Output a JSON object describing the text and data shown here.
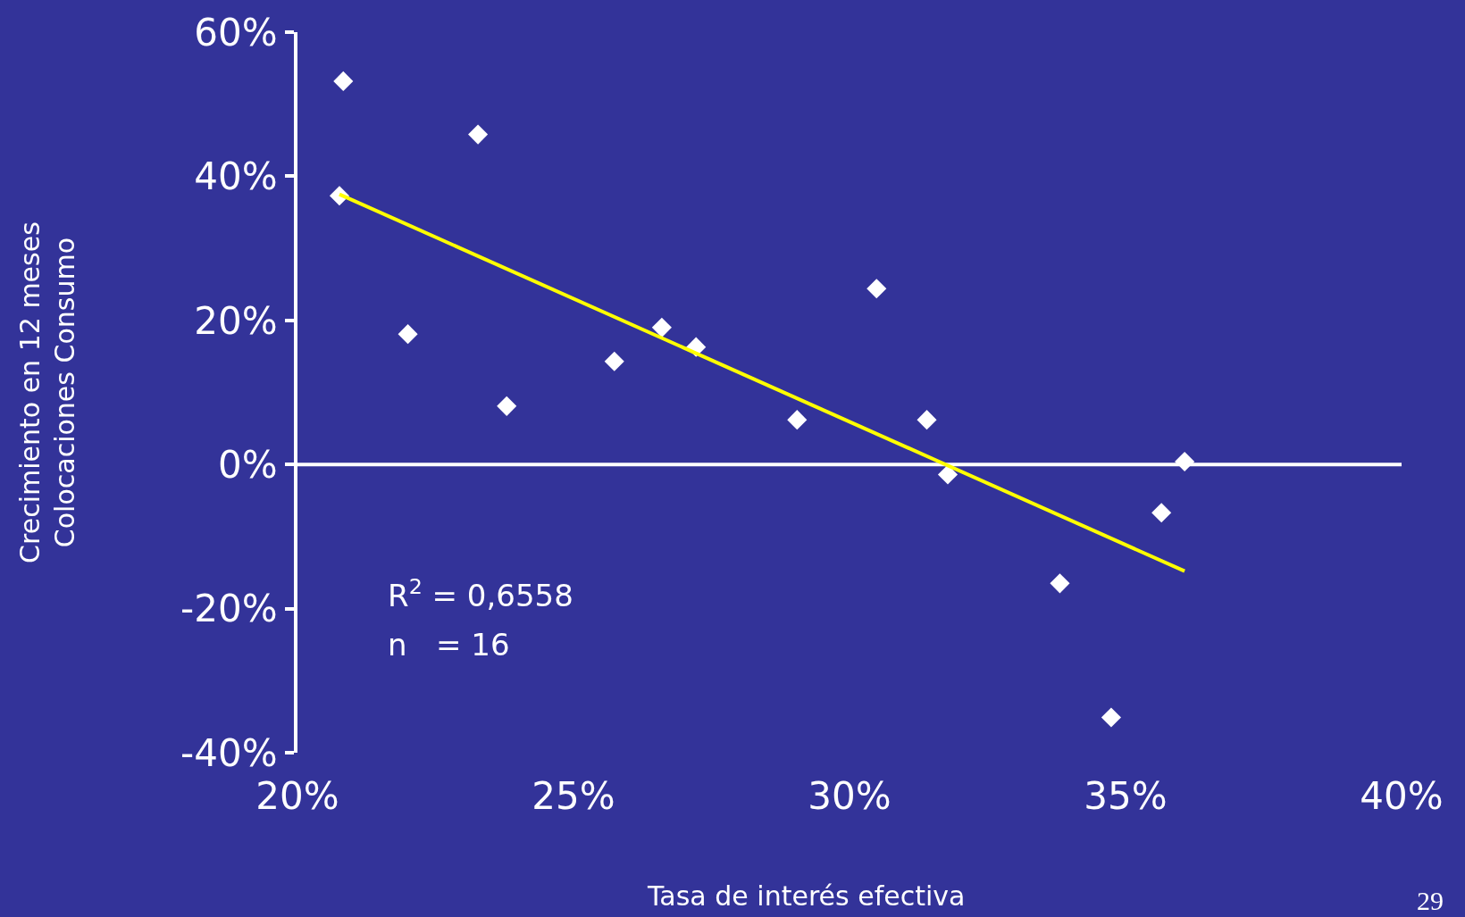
{
  "chart_data": {
    "type": "scatter",
    "xlabel": "Tasa de interés efectiva",
    "ylabel": "Crecimiento en 12 meses\nColocaciones Consumo",
    "series": [
      {
        "color": "#ffffff",
        "marker": "diamond",
        "x": [
          20.83,
          20.76,
          22.0,
          23.27,
          23.79,
          25.74,
          26.6,
          27.22,
          29.05,
          30.49,
          31.4,
          31.78,
          33.81,
          34.74,
          35.65,
          36.07
        ],
        "values": [
          53.2,
          37.3,
          18.1,
          45.8,
          8.1,
          14.3,
          19.0,
          16.3,
          6.2,
          24.4,
          6.2,
          -1.4,
          -16.5,
          -35.1,
          -6.7,
          0.4
        ]
      },
      {
        "type": "line",
        "color": "#ffff00",
        "marker": "none",
        "x": [
          20.76,
          36.07
        ],
        "values": [
          37.5,
          -14.8
        ]
      }
    ],
    "xlim": [
      20,
      40
    ],
    "ylim": [
      -40,
      60
    ],
    "xticks": [
      {
        "value": 20,
        "label": "20%"
      },
      {
        "value": 25,
        "label": "25%"
      },
      {
        "value": 30,
        "label": "30%"
      },
      {
        "value": 35,
        "label": "35%"
      },
      {
        "value": 40,
        "label": "40%"
      }
    ],
    "yticks": [
      {
        "value": -40,
        "label": "-40%"
      },
      {
        "value": -20,
        "label": "-20%"
      },
      {
        "value": 0,
        "label": "0%"
      },
      {
        "value": 20,
        "label": "20%"
      },
      {
        "value": 40,
        "label": "40%"
      },
      {
        "value": 60,
        "label": "60%"
      }
    ],
    "annotations": [
      "R$^{2}$ = 0,6558",
      "n   = 16",
      "29"
    ],
    "ref_lines": [
      {
        "axis": "y",
        "value": 0,
        "color": "#ffffff"
      }
    ],
    "grid": false
  }
}
